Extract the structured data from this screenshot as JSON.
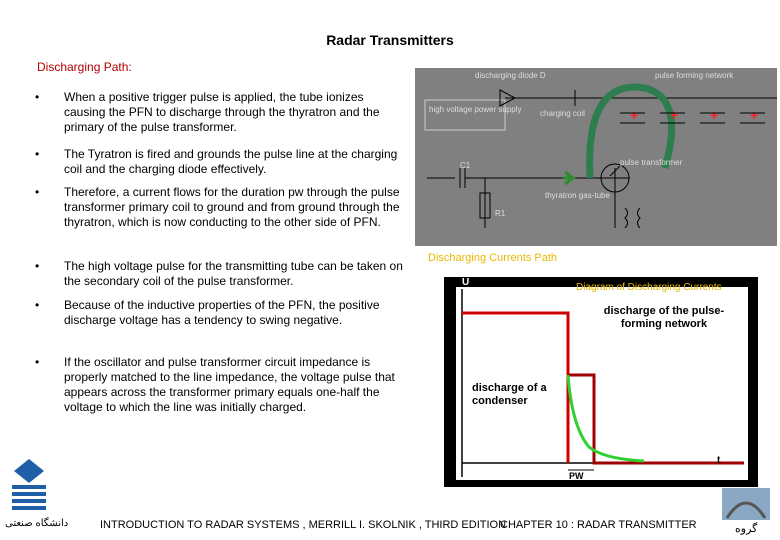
{
  "header": {
    "title": "Radar Transmitters",
    "subtitle": "Discharging Path:"
  },
  "bullets": [
    "When a positive trigger pulse is applied, the tube ionizes causing the PFN to discharge through the thyratron and the primary of the pulse transformer.",
    "The Tyratron is fired and grounds the pulse line at the charging coil and the charging diode effectively.",
    "Therefore, a current flows for the duration pw through the pulse transformer primary coil to ground and from ground through the thyratron, which is now conducting to the other side of PFN.",
    "The high voltage pulse for the transmitting tube can be taken on the secondary coil of the pulse transformer.",
    "Because of the inductive properties of the PFN, the positive discharge voltage has a tendency to swing negative.",
    "If the oscillator and pulse transformer circuit impedance is properly matched to the line impedance, the voltage pulse that appears across the transformer primary equals one-half the voltage to which the line was initially charged."
  ],
  "circuit": {
    "labels": [
      "discharging diode D",
      "pulse forming network",
      "high voltage power supply",
      "charging coil",
      "C1",
      "pulse transformer",
      "thyratron gas-tube",
      "R1"
    ],
    "caption": "Discharging Currents Path"
  },
  "graph": {
    "title": "Diagram of Discharging Currents",
    "y_axis": "U",
    "x_axis": "t",
    "pfn_label": "discharge of the pulse-forming network",
    "condenser_label": "discharge of a condenser",
    "pw_label": "PW"
  },
  "footer": {
    "reference": "INTRODUCTION TO RADAR SYSTEMS , MERRILL I. SKOLNIK , THIRD EDITION",
    "chapter": "CHAPTER 10 : RADAR TRANSMITTER",
    "university": "دانشگاه صنعتی",
    "group": "گروه"
  }
}
